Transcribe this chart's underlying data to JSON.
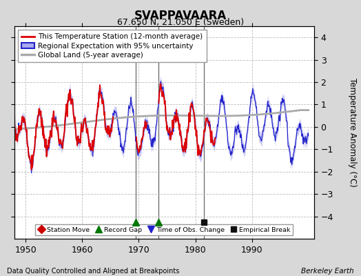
{
  "title": "SVAPPAVAARA",
  "subtitle": "67.650 N, 21.050 E (Sweden)",
  "ylabel": "Temperature Anomaly (°C)",
  "xlabel_bottom": "Data Quality Controlled and Aligned at Breakpoints",
  "xlabel_right": "Berkeley Earth",
  "xlim": [
    1948.0,
    2001.0
  ],
  "ylim": [
    -5.0,
    4.5
  ],
  "yticks": [
    -4,
    -3,
    -2,
    -1,
    0,
    1,
    2,
    3,
    4
  ],
  "xticks": [
    1950,
    1960,
    1970,
    1980,
    1990
  ],
  "background_color": "#d8d8d8",
  "plot_bg_color": "#ffffff",
  "grid_color": "#bbbbbb",
  "record_gaps": [
    1969.5,
    1973.5
  ],
  "empirical_breaks": [
    1981.5
  ],
  "time_obs_changes": [],
  "station_moves": [],
  "marker_y": -4.25,
  "vertical_lines": [
    1969.5,
    1973.5,
    1981.5
  ],
  "blue_color": "#2222cc",
  "blue_band_color": "#aaaaee",
  "red_color": "#dd0000",
  "gray_color": "#aaaaaa"
}
